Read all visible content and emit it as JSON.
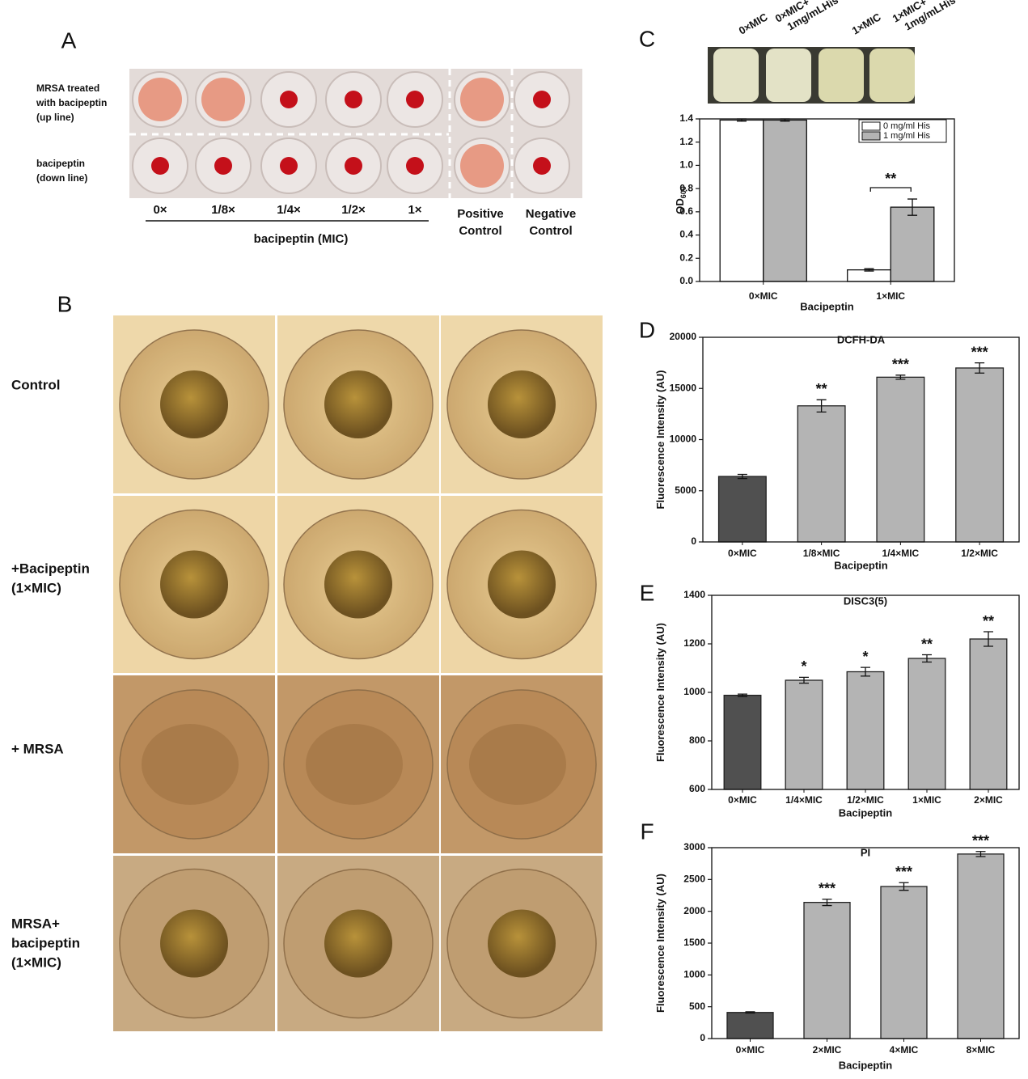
{
  "panel_a": {
    "label": "A",
    "row_labels": [
      [
        "MRSA treated",
        "with bacipeptin",
        "(up line)"
      ],
      [
        "bacipeptin",
        "(down line)"
      ]
    ],
    "column_labels": [
      [
        "0×"
      ],
      [
        "1/8×"
      ],
      [
        "1/4×"
      ],
      [
        "1/2×"
      ],
      [
        "1×"
      ],
      [
        "Positive",
        "Control"
      ],
      [
        "Negative",
        "Control"
      ]
    ],
    "axis_label": "bacipeptin (MIC)"
  },
  "panel_b": {
    "label": "B",
    "row_labels": [
      [
        "Control"
      ],
      [
        "+Bacipeptin",
        "(1×MIC)"
      ],
      [
        "+ MRSA"
      ],
      [
        "MRSA+",
        "bacipeptin",
        "(1×MIC)"
      ]
    ]
  },
  "chart_data": [
    {
      "type": "bar",
      "label": "C",
      "tube_labels": [
        [
          "0×MIC"
        ],
        [
          "0×MIC+",
          "1mg/mLHis"
        ],
        [
          "1×MIC"
        ],
        [
          "1×MIC+",
          "1mg/mLHis"
        ]
      ],
      "y_label": "OD",
      "y_label_subscript": "600",
      "x_label": "Bacipeptin",
      "categories": [
        "0×MIC",
        "1×MIC"
      ],
      "series": [
        {
          "name": "0 mg/ml His",
          "color": "#ffffff",
          "values": [
            1.39,
            0.1
          ],
          "errors": [
            0.01,
            0.01
          ]
        },
        {
          "name": "1 mg/ml His",
          "color": "#b4b4b4",
          "values": [
            1.39,
            0.64
          ],
          "errors": [
            0.01,
            0.07
          ]
        }
      ],
      "annotation": "**",
      "ylim": [
        0,
        1.4
      ],
      "yticks": [
        {
          "value": 0,
          "label": "0.0"
        },
        {
          "value": 0.2,
          "label": "0.2"
        },
        {
          "value": 0.4,
          "label": "0.4"
        },
        {
          "value": 0.6,
          "label": "0.6"
        },
        {
          "value": 0.8,
          "label": "0.8"
        },
        {
          "value": 1,
          "label": "1.0"
        },
        {
          "value": 1.2,
          "label": "1.2"
        },
        {
          "value": 1.4,
          "label": "1.4"
        }
      ]
    },
    {
      "type": "bar",
      "label": "D",
      "title": "DCFH-DA",
      "y_label": "Fluorescence Intensity (AU)",
      "x_label": "Bacipeptin",
      "categories": [
        "0×MIC",
        "1/8×MIC",
        "1/4×MIC",
        "1/2×MIC"
      ],
      "values": [
        6400,
        13300,
        16100,
        17000
      ],
      "errors": [
        200,
        600,
        200,
        500
      ],
      "significance": [
        null,
        "**",
        "***",
        "***"
      ],
      "colors": [
        "#505050",
        "#b4b4b4",
        "#b4b4b4",
        "#b4b4b4"
      ],
      "ylim": [
        0,
        20000
      ],
      "yticks": [
        0,
        5000,
        10000,
        15000,
        20000
      ]
    },
    {
      "type": "bar",
      "label": "E",
      "title": "DISC3(5)",
      "y_label": "Fluorescence Intensity (AU)",
      "x_label": "Bacipeptin",
      "categories": [
        "0×MIC",
        "1/4×MIC",
        "1/2×MIC",
        "1×MIC",
        "2×MIC"
      ],
      "values": [
        988,
        1050,
        1085,
        1140,
        1220
      ],
      "errors": [
        5,
        12,
        18,
        15,
        30
      ],
      "significance": [
        null,
        "*",
        "*",
        "**",
        "**"
      ],
      "colors": [
        "#505050",
        "#b4b4b4",
        "#b4b4b4",
        "#b4b4b4",
        "#b4b4b4"
      ],
      "ylim": [
        600,
        1400
      ],
      "yticks": [
        600,
        800,
        1000,
        1200,
        1400
      ]
    },
    {
      "type": "bar",
      "label": "F",
      "title": "PI",
      "y_label": "Fluorescence Intensity (AU)",
      "x_label": "Bacipeptin",
      "categories": [
        "0×MIC",
        "2×MIC",
        "4×MIC",
        "8×MIC"
      ],
      "values": [
        410,
        2140,
        2390,
        2900
      ],
      "errors": [
        10,
        50,
        60,
        40
      ],
      "significance": [
        null,
        "***",
        "***",
        "***"
      ],
      "colors": [
        "#505050",
        "#b4b4b4",
        "#b4b4b4",
        "#b4b4b4"
      ],
      "ylim": [
        0,
        3000
      ],
      "yticks": [
        0,
        500,
        1000,
        1500,
        2000,
        2500,
        3000
      ]
    }
  ]
}
